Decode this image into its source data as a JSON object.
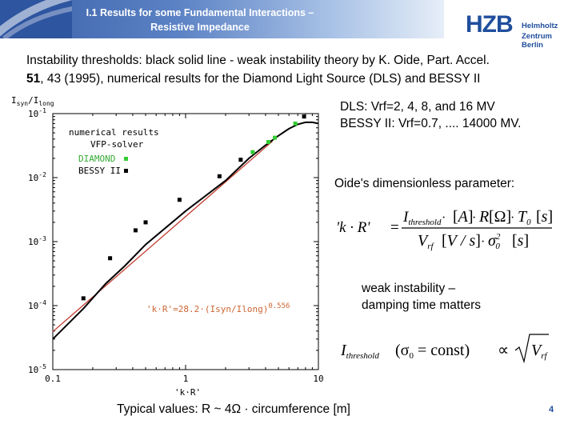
{
  "header": {
    "title_line1": "I.1 Results for some Fundamental Interactions –",
    "title_line2": "Resistive Impedance"
  },
  "logo": {
    "mark": "HZB",
    "line1": "Helmholtz",
    "line2": "Zentrum Berlin"
  },
  "intro": {
    "line1": "Instability thresholds: black solid line - weak instability theory by K. Oide,  Part. Accel.",
    "bold_volume": "51",
    "line2_rest": ", 43 (1995), numerical results for the Diamond Light Source (DLS) and BESSY II"
  },
  "right": {
    "dls": "DLS: Vrf=2, 4, 8, and 16 MV",
    "bessy": "BESSY II: Vrf=0.7, .... 14000 MV.",
    "oide_param": "Oide's dimensionless parameter:",
    "weak1": "weak instability –",
    "weak2": "damping time matters"
  },
  "formula1": {
    "lhs": "'k · R'",
    "eq": "=",
    "ithr": "I",
    "ithr_sub": "threshold",
    "A": "A",
    "R": "R",
    "Omega": "Ω",
    "T0": "T",
    "T0_sub": "0",
    "s": "s",
    "Vrf": "V",
    "Vrf_sub": "rf",
    "V": "V",
    "per_s": "/ s",
    "sigma": "σ",
    "sigma_sup": "2",
    "sigma_sub": "0",
    "s2": "s",
    "dot": "·"
  },
  "formula2": {
    "ithr": "I",
    "ithr_sub": "threshold",
    "cond": "(σ",
    "cond_sub": "0",
    "cond_rest": " = const)",
    "prop": "∝",
    "Vrf": "V",
    "Vrf_sub": "rf"
  },
  "chart_data": {
    "type": "scatter",
    "log_x": true,
    "log_y": true,
    "xlim": [
      0.1,
      10
    ],
    "ylim": [
      1e-05,
      0.1
    ],
    "xticks": [
      "0.1",
      "1",
      "10"
    ],
    "yticks": [
      "10",
      "10",
      "10",
      "10",
      "10"
    ],
    "ytick_exponents": [
      "-5",
      "-4",
      "-3",
      "-2",
      "-1"
    ],
    "xlabel": "'k·R'",
    "ylabel": "Isyn/Ilong",
    "ylabel_parts": {
      "a": "I",
      "a_sub": "syn",
      "slash": "/",
      "b": "I",
      "b_sub": "long"
    },
    "legend": {
      "line1": "numerical results",
      "line2": "VFP-solver",
      "diamond": "DIAMOND",
      "bessy": "BESSY II"
    },
    "fit_label": "'k·R'=28.2·(Isyn/Ilong)",
    "fit_exponent": "0.556",
    "fit": {
      "coefficient": 28.2,
      "exponent": 0.556,
      "color": "#c0392b"
    },
    "series": [
      {
        "name": "DIAMOND",
        "color": "#33cc33",
        "points": [
          [
            3.2,
            0.025
          ],
          [
            4.2,
            0.036
          ],
          [
            4.7,
            0.042
          ],
          [
            6.7,
            0.07
          ]
        ]
      },
      {
        "name": "BESSY II",
        "color": "#000000",
        "points": [
          [
            0.17,
            0.00013
          ],
          [
            0.27,
            0.00055
          ],
          [
            0.42,
            0.0015
          ],
          [
            0.5,
            0.002
          ],
          [
            0.9,
            0.0045
          ],
          [
            1.8,
            0.0105
          ],
          [
            2.6,
            0.019
          ],
          [
            7.8,
            0.09
          ]
        ]
      }
    ],
    "oide_line": [
      [
        0.1,
        3e-05
      ],
      [
        0.17,
        9e-05
      ],
      [
        0.25,
        0.00022
      ],
      [
        0.35,
        0.00042
      ],
      [
        0.5,
        0.0009
      ],
      [
        1.0,
        0.003
      ],
      [
        2.0,
        0.009
      ],
      [
        3.0,
        0.02
      ],
      [
        4.0,
        0.032
      ],
      [
        5.0,
        0.045
      ],
      [
        6.0,
        0.058
      ],
      [
        7.0,
        0.068
      ],
      [
        8.0,
        0.073
      ],
      [
        9.0,
        0.073
      ],
      [
        10.0,
        0.07
      ]
    ]
  },
  "footer": "Typical values: R ~ 4Ω · circumference [m]",
  "page_number": "4"
}
